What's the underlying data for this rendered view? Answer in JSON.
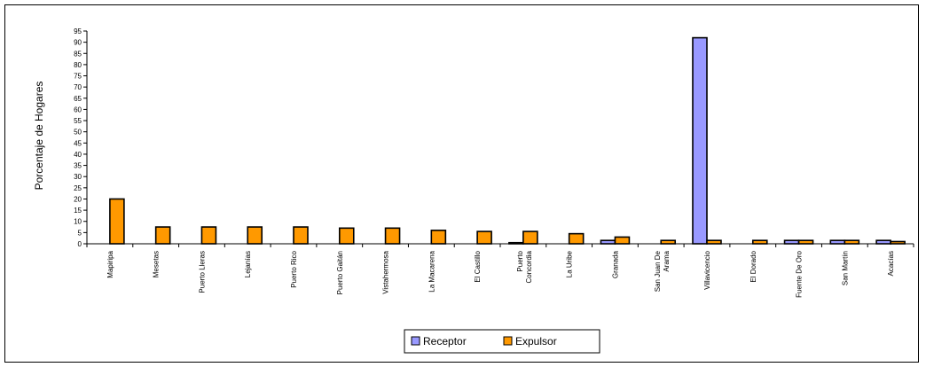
{
  "chart_data": {
    "type": "bar",
    "title": "",
    "xlabel": "",
    "ylabel": "Porcentaje de Hogares",
    "ylim": [
      0,
      95
    ],
    "yticks": [
      0,
      5,
      10,
      15,
      20,
      25,
      30,
      35,
      40,
      45,
      50,
      55,
      60,
      65,
      70,
      75,
      80,
      85,
      90,
      95
    ],
    "grid": false,
    "legend_position": "bottom",
    "categories": [
      [
        "Mapiripa"
      ],
      [
        "Mesetas"
      ],
      [
        "Puerto Lleras"
      ],
      [
        "Lejanías"
      ],
      [
        "Puerto Rico"
      ],
      [
        "Puerto Gaitán"
      ],
      [
        "Vistahermosa"
      ],
      [
        "La Macarena"
      ],
      [
        "El Castillo"
      ],
      [
        "Puerto",
        "Concordia"
      ],
      [
        "La Uribe"
      ],
      [
        "Granada"
      ],
      [
        "San Juan De",
        "Arama"
      ],
      [
        "Villavicencio"
      ],
      [
        "El Dorado"
      ],
      [
        "Fuente De Oro"
      ],
      [
        "San Martín"
      ],
      [
        "Acacías"
      ]
    ],
    "series": [
      {
        "name": "Receptor",
        "color": "#9999ff",
        "values": [
          0,
          0,
          0,
          0,
          0,
          0,
          0,
          0,
          0,
          0.5,
          0,
          1.5,
          0,
          92,
          0,
          1.5,
          1.5,
          1.5
        ]
      },
      {
        "name": "Expulsor",
        "color": "#ff9900",
        "values": [
          20,
          7.5,
          7.5,
          7.5,
          7.5,
          7,
          7,
          6,
          5.5,
          5.5,
          4.5,
          3,
          1.5,
          1.5,
          1.5,
          1.5,
          1.5,
          1
        ]
      }
    ]
  }
}
